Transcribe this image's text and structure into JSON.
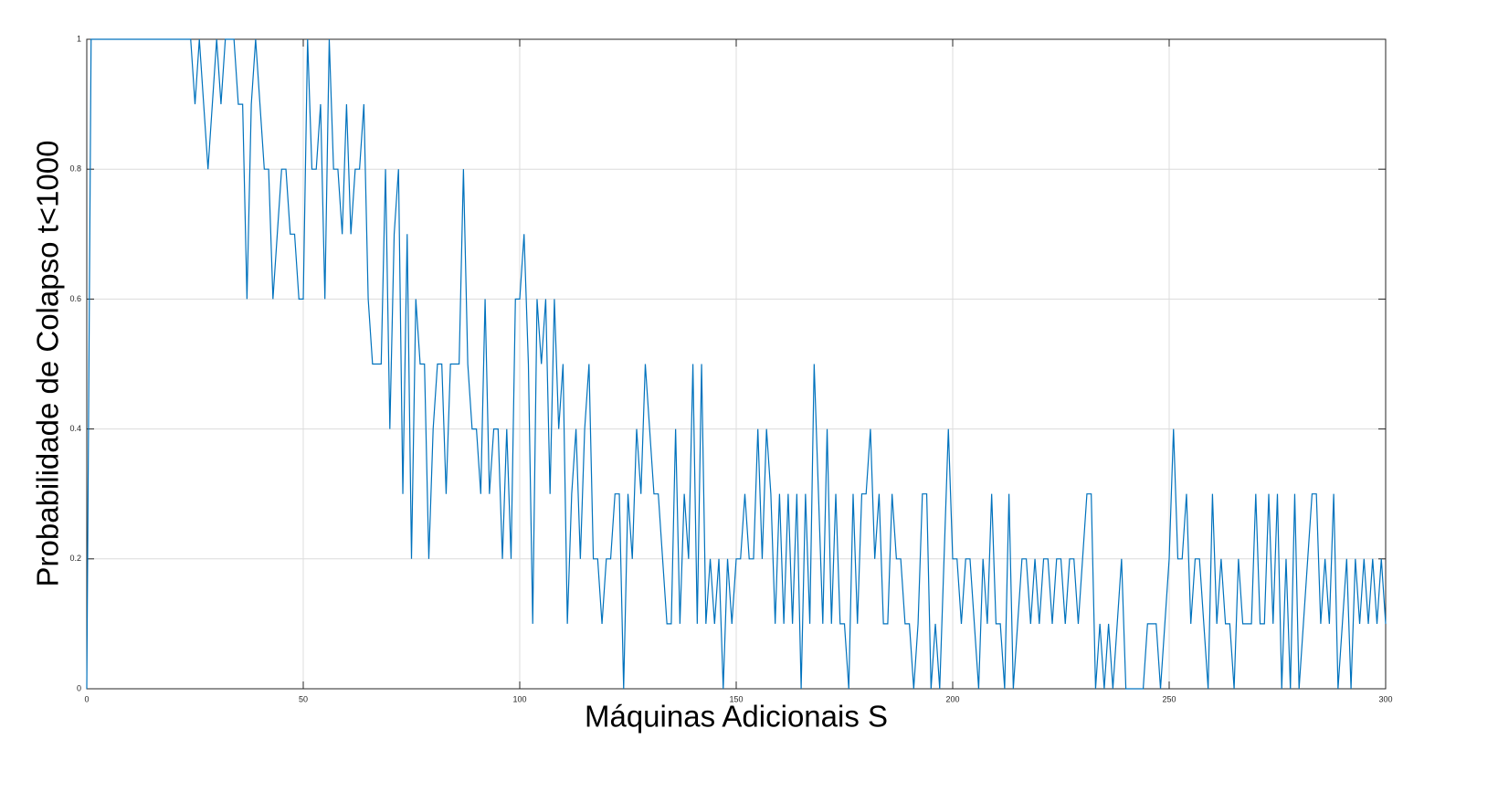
{
  "chart_data": {
    "type": "line",
    "xlabel": "Máquinas Adicionais S",
    "ylabel": "Probabilidade de Colapso t<1000",
    "x": [
      0,
      1,
      2,
      3,
      4,
      5,
      6,
      7,
      8,
      9,
      10,
      11,
      12,
      13,
      14,
      15,
      16,
      17,
      18,
      19,
      20,
      21,
      22,
      23,
      24,
      25,
      26,
      27,
      28,
      29,
      30,
      31,
      32,
      33,
      34,
      35,
      36,
      37,
      38,
      39,
      40,
      41,
      42,
      43,
      44,
      45,
      46,
      47,
      48,
      49,
      50,
      51,
      52,
      53,
      54,
      55,
      56,
      57,
      58,
      59,
      60,
      61,
      62,
      63,
      64,
      65,
      66,
      67,
      68,
      69,
      70,
      71,
      72,
      73,
      74,
      75,
      76,
      77,
      78,
      79,
      80,
      81,
      82,
      83,
      84,
      85,
      86,
      87,
      88,
      89,
      90,
      91,
      92,
      93,
      94,
      95,
      96,
      97,
      98,
      99,
      100,
      101,
      102,
      103,
      104,
      105,
      106,
      107,
      108,
      109,
      110,
      111,
      112,
      113,
      114,
      115,
      116,
      117,
      118,
      119,
      120,
      121,
      122,
      123,
      124,
      125,
      126,
      127,
      128,
      129,
      130,
      131,
      132,
      133,
      134,
      135,
      136,
      137,
      138,
      139,
      140,
      141,
      142,
      143,
      144,
      145,
      146,
      147,
      148,
      149,
      150,
      151,
      152,
      153,
      154,
      155,
      156,
      157,
      158,
      159,
      160,
      161,
      162,
      163,
      164,
      165,
      166,
      167,
      168,
      169,
      170,
      171,
      172,
      173,
      174,
      175,
      176,
      177,
      178,
      179,
      180,
      181,
      182,
      183,
      184,
      185,
      186,
      187,
      188,
      189,
      190,
      191,
      192,
      193,
      194,
      195,
      196,
      197,
      198,
      199,
      200,
      201,
      202,
      203,
      204,
      205,
      206,
      207,
      208,
      209,
      210,
      211,
      212,
      213,
      214,
      215,
      216,
      217,
      218,
      219,
      220,
      221,
      222,
      223,
      224,
      225,
      226,
      227,
      228,
      229,
      230,
      231,
      232,
      233,
      234,
      235,
      236,
      237,
      238,
      239,
      240,
      241,
      242,
      243,
      244,
      245,
      246,
      247,
      248,
      249,
      250,
      251,
      252,
      253,
      254,
      255,
      256,
      257,
      258,
      259,
      260,
      261,
      262,
      263,
      264,
      265,
      266,
      267,
      268,
      269,
      270,
      271,
      272,
      273,
      274,
      275,
      276,
      277,
      278,
      279,
      280,
      281,
      282,
      283,
      284,
      285,
      286,
      287,
      288,
      289,
      290,
      291,
      292,
      293,
      294,
      295,
      296,
      297,
      298,
      299,
      300
    ],
    "series": [
      {
        "color": "#0072bd",
        "values": [
          0,
          1,
          1,
          1,
          1,
          1,
          1,
          1,
          1,
          1,
          1,
          1,
          1,
          1,
          1,
          1,
          1,
          1,
          1,
          1,
          1,
          1,
          1,
          1,
          1,
          0.9,
          1,
          0.9,
          0.8,
          0.9,
          1,
          0.9,
          1,
          1,
          1,
          0.9,
          0.9,
          0.6,
          0.9,
          1,
          0.9,
          0.8,
          0.8,
          0.6,
          0.7,
          0.8,
          0.8,
          0.7,
          0.7,
          0.6,
          0.6,
          1,
          0.8,
          0.8,
          0.9,
          0.6,
          1,
          0.8,
          0.8,
          0.7,
          0.9,
          0.7,
          0.8,
          0.8,
          0.9,
          0.6,
          0.5,
          0.5,
          0.5,
          0.8,
          0.4,
          0.7,
          0.8,
          0.3,
          0.7,
          0.2,
          0.6,
          0.5,
          0.5,
          0.2,
          0.4,
          0.5,
          0.5,
          0.3,
          0.5,
          0.5,
          0.5,
          0.8,
          0.5,
          0.4,
          0.4,
          0.3,
          0.6,
          0.3,
          0.4,
          0.4,
          0.2,
          0.4,
          0.2,
          0.6,
          0.6,
          0.7,
          0.5,
          0.1,
          0.6,
          0.5,
          0.6,
          0.3,
          0.6,
          0.4,
          0.5,
          0.1,
          0.3,
          0.4,
          0.2,
          0.4,
          0.5,
          0.2,
          0.2,
          0.1,
          0.2,
          0.2,
          0.3,
          0.3,
          0,
          0.3,
          0.2,
          0.4,
          0.3,
          0.5,
          0.4,
          0.3,
          0.3,
          0.2,
          0.1,
          0.1,
          0.4,
          0.1,
          0.3,
          0.2,
          0.5,
          0.1,
          0.5,
          0.1,
          0.2,
          0.1,
          0.2,
          0,
          0.2,
          0.1,
          0.2,
          0.2,
          0.3,
          0.2,
          0.2,
          0.4,
          0.2,
          0.4,
          0.3,
          0.1,
          0.3,
          0.1,
          0.3,
          0.1,
          0.3,
          0,
          0.3,
          0.1,
          0.5,
          0.3,
          0.1,
          0.4,
          0.1,
          0.3,
          0.1,
          0.1,
          0,
          0.3,
          0.1,
          0.3,
          0.3,
          0.4,
          0.2,
          0.3,
          0.1,
          0.1,
          0.3,
          0.2,
          0.2,
          0.1,
          0.1,
          0,
          0.1,
          0.3,
          0.3,
          0,
          0.1,
          0,
          0.2,
          0.4,
          0.2,
          0.2,
          0.1,
          0.2,
          0.2,
          0.1,
          0,
          0.2,
          0.1,
          0.3,
          0.1,
          0.1,
          0,
          0.3,
          0,
          0.1,
          0.2,
          0.2,
          0.1,
          0.2,
          0.1,
          0.2,
          0.2,
          0.1,
          0.2,
          0.2,
          0.1,
          0.2,
          0.2,
          0.1,
          0.2,
          0.3,
          0.3,
          0,
          0.1,
          0,
          0.1,
          0,
          0.1,
          0.2,
          0,
          0,
          0,
          0,
          0,
          0.1,
          0.1,
          0.1,
          0,
          0.1,
          0.2,
          0.4,
          0.2,
          0.2,
          0.3,
          0.1,
          0.2,
          0.2,
          0.1,
          0,
          0.3,
          0.1,
          0.2,
          0.1,
          0.1,
          0,
          0.2,
          0.1,
          0.1,
          0.1,
          0.3,
          0.1,
          0.1,
          0.3,
          0.1,
          0.3,
          0,
          0.2,
          0,
          0.3,
          0,
          0.1,
          0.2,
          0.3,
          0.3,
          0.1,
          0.2,
          0.1,
          0.3,
          0,
          0.1,
          0.2,
          0,
          0.2,
          0.1,
          0.2,
          0.1,
          0.2,
          0.1,
          0.2,
          0.1
        ]
      }
    ],
    "xlim": [
      0,
      300
    ],
    "xticks": [
      0,
      50,
      100,
      150,
      200,
      250,
      300
    ],
    "ylim": [
      0,
      1
    ],
    "yticks": [
      0,
      0.2,
      0.4,
      0.6,
      0.8,
      1
    ],
    "grid": true
  }
}
